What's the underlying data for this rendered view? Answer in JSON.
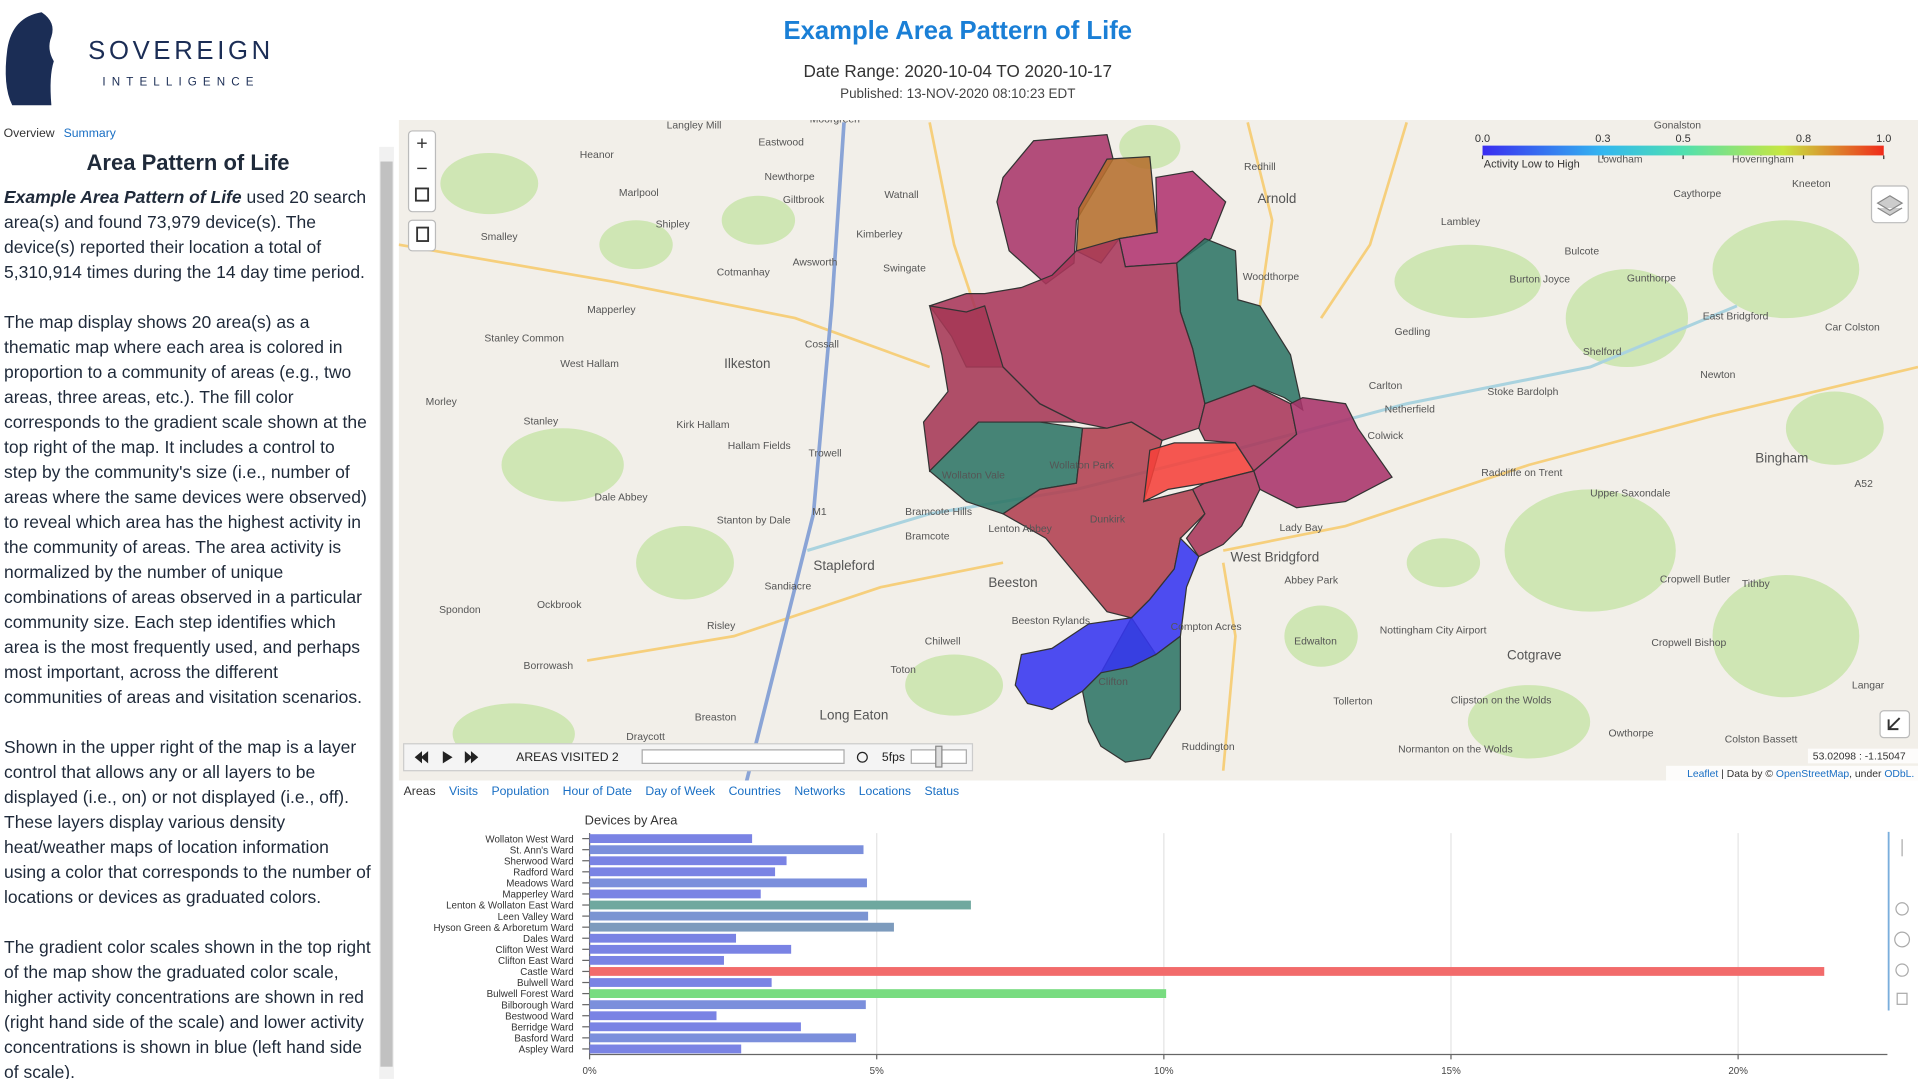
{
  "logo": {
    "name": "SOVEREIGN",
    "tagline": "INTELLIGENCE"
  },
  "header": {
    "title": "Example Area Pattern of Life",
    "date_range": "Date Range: 2020-10-04 TO 2020-10-17",
    "published": "Published: 13-NOV-2020 08:10:23 EDT"
  },
  "nav": [
    "Overview",
    "Summary"
  ],
  "sidebar": {
    "heading": "Area Pattern of Life",
    "lead": "Example Area Pattern of Life",
    "paragraphs": [
      "used 20 search area(s) and found 73,979 device(s). The device(s) reported their location a total of 5,310,914 times during the 14 day time period.",
      "The map display shows 20 area(s) as a thematic map where each area is colored in proportion to a community of areas (e.g., two areas, three areas, etc.). The fill color corresponds to the gradient scale shown at the top right of the map. It includes a control to step by the community's size (i.e., number of areas where the same devices were observed) to reveal which area has the highest activity in the community of areas. The area activity is normalized by the number of unique combinations of areas observed in a particular community size. Each step identifies which area is the most frequently used, and perhaps most important, across the different communities of areas and visitation scenarios.",
      "Shown in the upper right of the map is a layer control that allows any or all layers to be displayed (i.e., on) or not displayed (i.e., off). These layers display various density heat/weather maps of location information using a color that corresponds to the number of locations or devices as graduated colors.",
      "The gradient color scales shown in the top right of the map show the graduated color scale, higher activity concentrations are shown in red (right hand side of the scale) and lower activity concentrations is shown in blue (left hand side of scale)."
    ]
  },
  "map": {
    "legend": {
      "label": "Activity Low to High",
      "lim": [
        0,
        1
      ],
      "ticks": [
        {
          "value": 0,
          "label": "0.0"
        },
        0.3,
        0.5,
        0.8,
        {
          "value": 1,
          "label": "1.0"
        }
      ]
    },
    "player": {
      "label": "AREAS VISITED 2",
      "fps": "5fps"
    },
    "coordinates": "53.02098 : -1.15047",
    "attribution": [
      "Leaflet",
      " | Data by © ",
      "OpenStreetMap",
      ", under ",
      "ODbL."
    ],
    "places": [
      "Langley Mill",
      "Moorgreen",
      "Eastwood",
      "Heanor",
      "Newthorpe",
      "Marlpool",
      "Giltbrook",
      "Watnall",
      "Shipley",
      "Kimberley",
      "Smalley",
      "Awsworth",
      "Swingate",
      "Cotmanhay",
      "Mapperley",
      "Stanley Common",
      "West Hallam",
      "Ilkeston",
      "Cossall",
      "Morley",
      "Stanley",
      "Kirk Hallam",
      "Hallam Fields",
      "Trowell",
      "Dale Abbey",
      "Stanton by Dale",
      "Bramcote Hills",
      "Bramcote",
      "Stapleford",
      "Sandiacre",
      "Beeston",
      "Risley",
      "Spondon",
      "Ockbrook",
      "Borrowash",
      "Chilwell",
      "Beeston Rylands",
      "Toton",
      "Breaston",
      "Long Eaton",
      "Draycott",
      "Redhill",
      "Arnold",
      "Woodthorpe",
      "Gedling",
      "Lambley",
      "Burton Joyce",
      "Bulcote",
      "Gunthorpe",
      "Caythorpe",
      "Hoveringham",
      "Lowdham",
      "Kneeton",
      "Gonalston",
      "East Bridgford",
      "Shelford",
      "Car Colston",
      "Carlton",
      "Netherfield",
      "Stoke Bardolph",
      "Newton",
      "Colwick",
      "Bingham",
      "Radcliffe on Trent",
      "Upper Saxondale",
      "Lady Bay",
      "West Bridgford",
      "Abbey Park",
      "Edwalton",
      "Compton Acres",
      "Cropwell Butler",
      "Tithby",
      "Cropwell Bishop",
      "Cotgrave",
      "Nottingham City Airport",
      "Tollerton",
      "Clipston on the Wolds",
      "Owthorpe",
      "Langar",
      "Colston Bassett",
      "Normanton on the Wolds",
      "Ruddington",
      "Clifton",
      "Wollaton Vale",
      "Wollaton Park",
      "Lenton Abbey",
      "Dunkirk",
      "M1",
      "A52"
    ]
  },
  "tabs": [
    "Areas",
    "Visits",
    "Population",
    "Hour of Date",
    "Day of Week",
    "Countries",
    "Networks",
    "Locations",
    "Status"
  ],
  "chart_data": {
    "type": "bar",
    "orientation": "horizontal",
    "title": "Devices by Area",
    "categories": [
      "Wollaton West Ward",
      "St. Ann's Ward",
      "Sherwood Ward",
      "Radford Ward",
      "Meadows Ward",
      "Mapperley Ward",
      "Lenton & Wollaton East Ward",
      "Leen Valley Ward",
      "Hyson Green & Arboretum Ward",
      "Dales Ward",
      "Clifton West Ward",
      "Clifton East Ward",
      "Castle Ward",
      "Bulwell Ward",
      "Bulwell Forest Ward",
      "Bilborough Ward",
      "Bestwood Ward",
      "Berridge Ward",
      "Basford Ward",
      "Aspley Ward"
    ],
    "values": [
      2.83,
      4.77,
      3.43,
      3.23,
      4.83,
      2.98,
      6.64,
      4.85,
      5.3,
      2.55,
      3.51,
      2.34,
      21.5,
      3.17,
      10.04,
      4.81,
      2.21,
      3.68,
      4.64,
      2.64
    ],
    "colors": [
      "#7a83e4",
      "#7b8fdc",
      "#7a83e4",
      "#7a83e4",
      "#7b8fdc",
      "#7a83e4",
      "#6fa89f",
      "#7b94d2",
      "#7d9bbd",
      "#7a83e4",
      "#7a83e4",
      "#7a83e4",
      "#f26b6b",
      "#7a83e4",
      "#78dc80",
      "#7b8fdc",
      "#7a83e4",
      "#7a83e4",
      "#7b8fdc",
      "#7a83e4"
    ],
    "xlim": [
      0,
      22.6
    ],
    "xticks": [
      {
        "value": 0,
        "label": "0%"
      },
      {
        "value": 5,
        "label": "5%"
      },
      {
        "value": 10,
        "label": "10%"
      },
      {
        "value": 15,
        "label": "15%"
      },
      {
        "value": 20,
        "label": "20%"
      }
    ],
    "grid": true
  }
}
